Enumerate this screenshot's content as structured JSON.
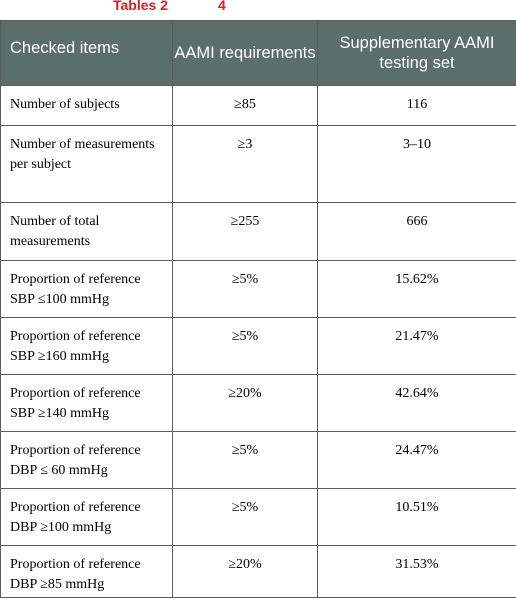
{
  "caption": {
    "word": "Tables 2",
    "number": "4"
  },
  "table": {
    "headers": [
      "Checked items",
      "AAMI requirements",
      "Supplementary AAMI testing set"
    ],
    "rows": [
      {
        "item": "Number of subjects",
        "requirement": "≥85",
        "value": "116"
      },
      {
        "item": "Number of measurements per subject",
        "requirement": "≥3",
        "value": "3–10"
      },
      {
        "item": "Number of total measurements",
        "requirement": "≥255",
        "value": "666"
      },
      {
        "item": "Proportion of reference SBP ≤100 mmHg",
        "requirement": "≥5%",
        "value": "15.62%"
      },
      {
        "item": "Proportion of reference SBP ≥160 mmHg",
        "requirement": "≥5%",
        "value": "21.47%"
      },
      {
        "item": "Proportion of reference SBP ≥140 mmHg",
        "requirement": "≥20%",
        "value": "42.64%"
      },
      {
        "item": "Proportion of reference DBP ≤ 60 mmHg",
        "requirement": "≥5%",
        "value": "24.47%"
      },
      {
        "item": "Proportion of reference DBP ≥100 mmHg",
        "requirement": "≥5%",
        "value": "10.51%"
      },
      {
        "item": "Proportion of reference DBP ≥85 mmHg",
        "requirement": "≥20%",
        "value": "31.53%"
      }
    ]
  },
  "colors": {
    "caption": "#d31f1f",
    "header_background": "#5b6e6a",
    "header_text": "#ffffff",
    "border": "#5c5c5c"
  }
}
